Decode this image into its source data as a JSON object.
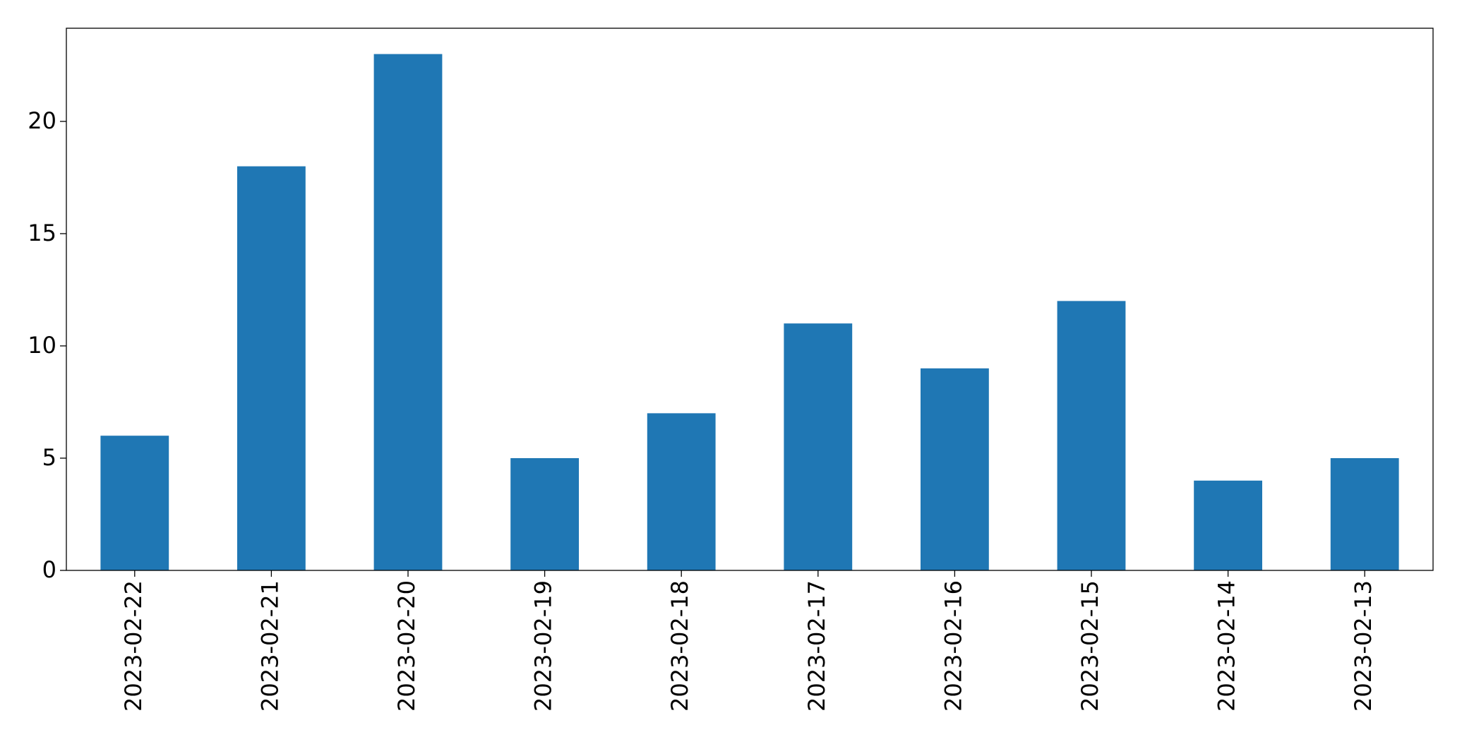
{
  "chart_data": {
    "type": "bar",
    "categories": [
      "2023-02-22",
      "2023-02-21",
      "2023-02-20",
      "2023-02-19",
      "2023-02-18",
      "2023-02-17",
      "2023-02-16",
      "2023-02-15",
      "2023-02-14",
      "2023-02-13"
    ],
    "values": [
      6,
      18,
      23,
      5,
      7,
      11,
      9,
      12,
      4,
      5
    ],
    "color": "#1f77b4",
    "ylim": [
      0,
      24.15
    ],
    "yticks": [
      0,
      5,
      10,
      15,
      20
    ],
    "grid": false
  }
}
